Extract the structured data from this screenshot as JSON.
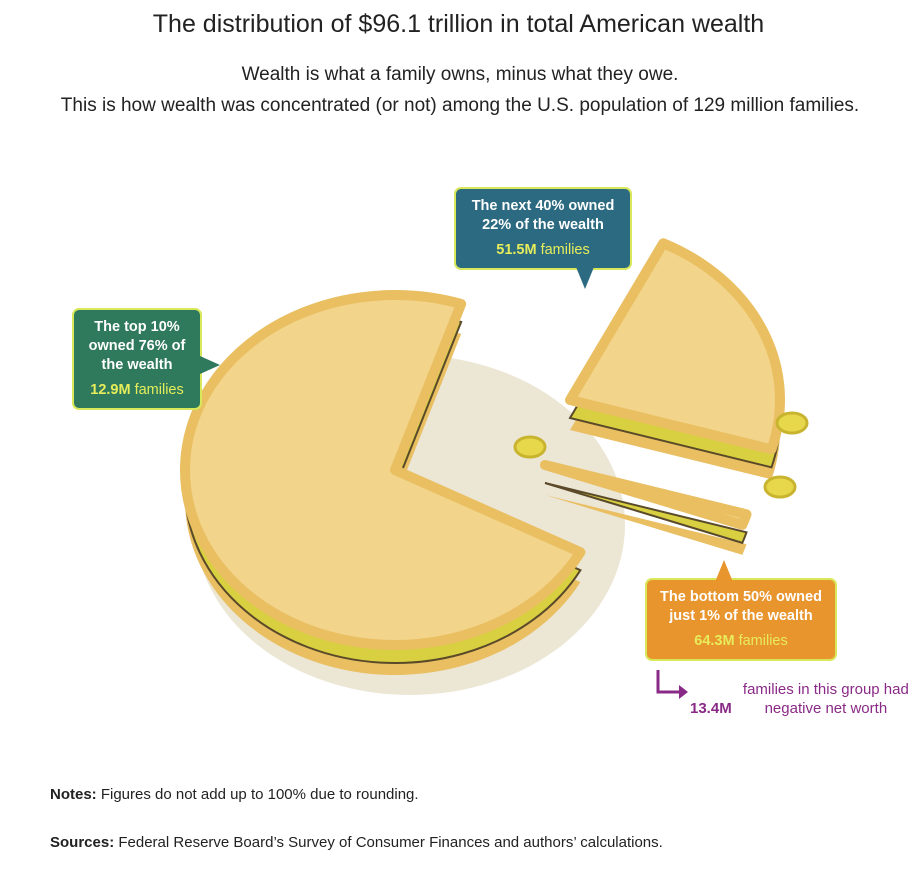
{
  "title": "The distribution of $96.1 trillion in total American wealth",
  "subtitle_1": "Wealth is what a family owns, minus what they owe.",
  "subtitle_2": "This is how wealth was concentrated (or not) among the U.S. population of 129 million families.",
  "chart_data": {
    "type": "pie",
    "title": "The distribution of $96.1 trillion in total American wealth",
    "categories": [
      "The top 10%",
      "The next 40%",
      "The bottom 50%"
    ],
    "values": [
      76,
      22,
      1
    ],
    "unit": "% of wealth",
    "families": [
      "12.9M",
      "51.5M",
      "64.3M"
    ],
    "colors": {
      "top": "#2f7a5c",
      "next": "#2b6a80",
      "bottom": "#e8952e",
      "pie": "#f2d48a",
      "crust": "#e9bf62",
      "filling": "#d8d040",
      "annotation": "#8a2a87"
    }
  },
  "callouts": {
    "top": {
      "text": "The top 10% owned 76% of the wealth",
      "num": "12.9M",
      "word": "families"
    },
    "next": {
      "text": "The next 40% owned 22% of the wealth",
      "num": "51.5M",
      "word": "families"
    },
    "bottom": {
      "text": "The bottom 50% owned just 1% of the wealth",
      "num": "64.3M",
      "word": "families"
    }
  },
  "negative": {
    "num": "13.4M",
    "text": "families in this group had negative net worth"
  },
  "notes": {
    "label": "Notes:",
    "text": " Figures do not add up to 100% due to rounding."
  },
  "sources": {
    "label": "Sources:",
    "text": " Federal Reserve Board’s Survey of Consumer Finances and authors’ calculations."
  }
}
